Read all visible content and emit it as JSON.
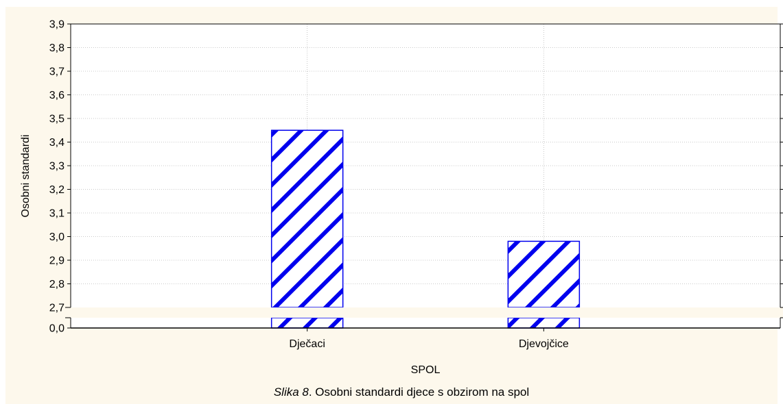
{
  "chart_data": {
    "type": "bar",
    "categories": [
      "Dječaci",
      "Djevojčice"
    ],
    "values": [
      3.45,
      2.98
    ],
    "xlabel": "SPOL",
    "ylabel": "Osobni standardi",
    "ylim": [
      2.7,
      3.9
    ],
    "y_ticks": [
      "2,7",
      "2,8",
      "2,9",
      "3,0",
      "3,1",
      "3,2",
      "3,3",
      "3,4",
      "3,5",
      "3,6",
      "3,7",
      "3,8",
      "3,9"
    ],
    "y_axis_break": true,
    "y_axis_break_label": "0,0",
    "grid": true,
    "bar_fill": "diagonal-hatch",
    "bar_color": "#0000ee",
    "background_color": "#fdf8ec"
  },
  "caption": {
    "prefix": "Slika 8",
    "text": ". Osobni standardi djece s obzirom na spol"
  }
}
